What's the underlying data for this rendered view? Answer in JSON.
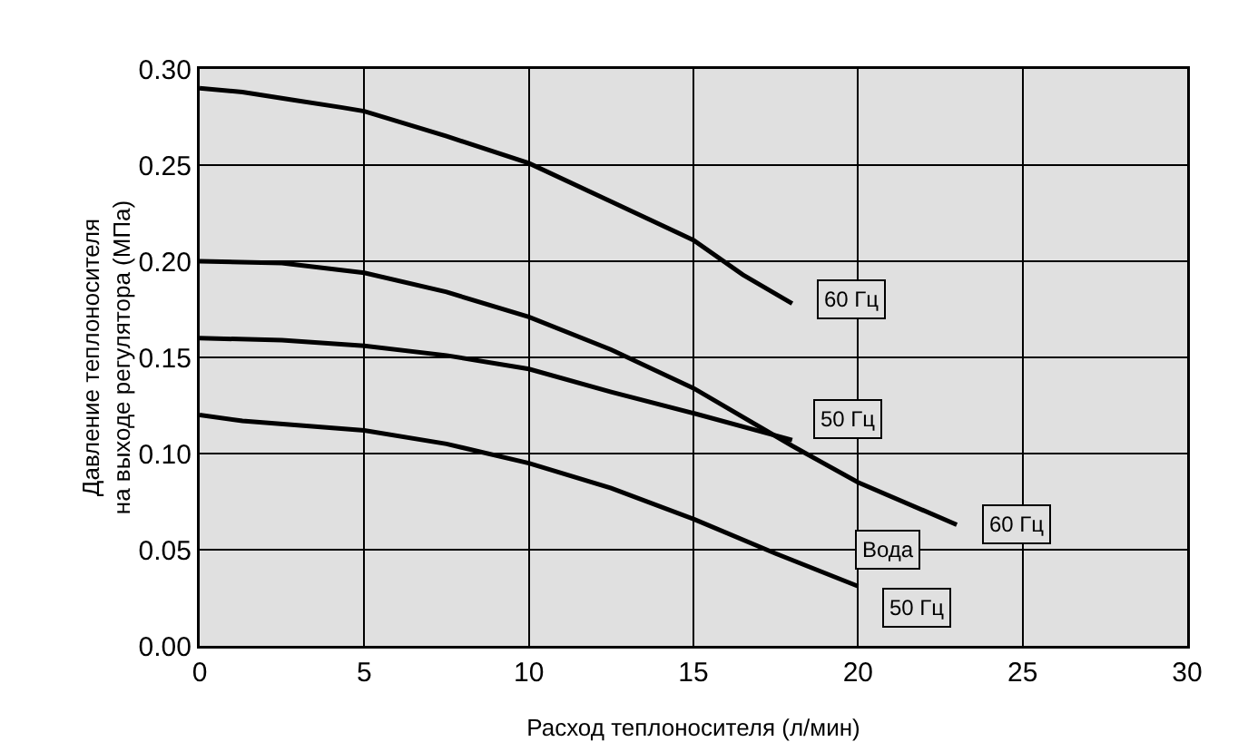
{
  "chart_data": {
    "type": "line",
    "xlabel": "Расход теплоносителя (л/мин)",
    "ylabel": "Давление теплоносителя\nна выходе регулятора (МПа)",
    "xlim": [
      0,
      30
    ],
    "xticks": [
      0,
      5,
      10,
      15,
      20,
      25,
      30
    ],
    "ylim": [
      0,
      0.3
    ],
    "yticks": [
      {
        "value": 0,
        "label": "0.00"
      },
      {
        "value": 0.05,
        "label": "0.05"
      },
      {
        "value": 0.1,
        "label": "0.10"
      },
      {
        "value": 0.15,
        "label": "0.15"
      },
      {
        "value": 0.2,
        "label": "0.20"
      },
      {
        "value": 0.25,
        "label": "0.25"
      },
      {
        "value": 0.3,
        "label": "0.30"
      }
    ],
    "grid": true,
    "marker": "none",
    "line_style": "solid",
    "series": [
      {
        "color": "#000000",
        "x": [
          0,
          1.3,
          2.8,
          4.3,
          5,
          7.5,
          10,
          12.5,
          15,
          16.5,
          18
        ],
        "values": [
          0.29,
          0.288,
          0.284,
          0.28,
          0.278,
          0.265,
          0.251,
          0.231,
          0.211,
          0.193,
          0.178
        ]
      },
      {
        "color": "#000000",
        "x": [
          0,
          2.5,
          5,
          7.5,
          10,
          12.5,
          15,
          18,
          20,
          23
        ],
        "values": [
          0.2,
          0.199,
          0.194,
          0.184,
          0.171,
          0.154,
          0.134,
          0.104,
          0.085,
          0.063
        ]
      },
      {
        "color": "#000000",
        "x": [
          0,
          2.5,
          5,
          7.5,
          10,
          12.5,
          15,
          18
        ],
        "values": [
          0.16,
          0.159,
          0.156,
          0.151,
          0.144,
          0.132,
          0.121,
          0.107
        ]
      },
      {
        "color": "#000000",
        "x": [
          0,
          1.3,
          5,
          7.5,
          10,
          12.5,
          15,
          17.5,
          20
        ],
        "values": [
          0.12,
          0.117,
          0.112,
          0.105,
          0.095,
          0.082,
          0.066,
          0.048,
          0.031
        ]
      }
    ],
    "annotations": [
      {
        "text": "60 Гц",
        "x": 19.8,
        "y": 0.18
      },
      {
        "text": "50 Гц",
        "x": 19.7,
        "y": 0.118
      },
      {
        "text": "60 Гц",
        "x": 24.8,
        "y": 0.063
      },
      {
        "text": "Вода",
        "x": 20.9,
        "y": 0.05
      },
      {
        "text": "50 Гц",
        "x": 21.8,
        "y": 0.02
      }
    ]
  }
}
